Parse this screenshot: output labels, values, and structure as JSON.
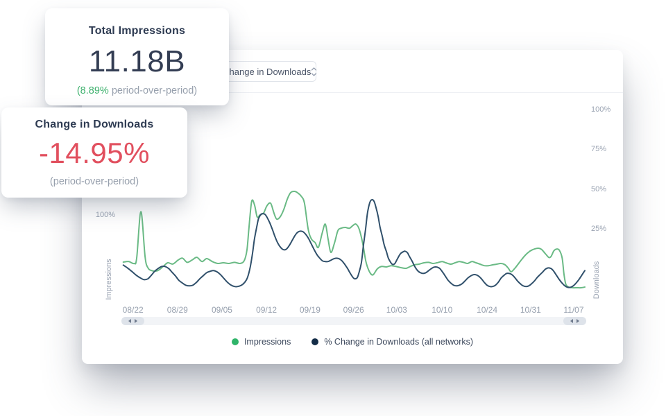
{
  "cards": {
    "impressions": {
      "title": "Total Impressions",
      "value": "11.18B",
      "delta_highlight": "(8.89%",
      "delta_rest": " period-over-period)"
    },
    "downloads": {
      "title": "Change in Downloads",
      "value": "-14.95%",
      "subtitle": "(period-over-period)"
    }
  },
  "panel": {
    "metric_select": {
      "value": "% Change in Downloads"
    }
  },
  "icons": {
    "select_chevron": "up-down-caret",
    "scroll_left": "left-triangle",
    "scroll_right": "right-triangle"
  },
  "chart_data": {
    "type": "line",
    "title": "",
    "grid": false,
    "legend_position": "bottom-center",
    "x_ticks": [
      {
        "label": "08/22",
        "pos": 0.025
      },
      {
        "label": "08/29",
        "pos": 0.121
      },
      {
        "label": "09/05",
        "pos": 0.217
      },
      {
        "label": "09/12",
        "pos": 0.313
      },
      {
        "label": "09/19",
        "pos": 0.407
      },
      {
        "label": "09/26",
        "pos": 0.501
      },
      {
        "label": "10/03",
        "pos": 0.594
      },
      {
        "label": "10/10",
        "pos": 0.692
      },
      {
        "label": "10/24",
        "pos": 0.789
      },
      {
        "label": "10/31",
        "pos": 0.883
      },
      {
        "label": "11/07",
        "pos": 0.976
      }
    ],
    "left_axis": {
      "title": "Impressions",
      "unit": "%",
      "min": 0,
      "max": 233.3,
      "ticks": [
        {
          "label": "100%",
          "value": 100
        }
      ]
    },
    "right_axis": {
      "title": "Downloads",
      "unit": "%",
      "min": -18.6,
      "max": 103.4,
      "ticks": [
        {
          "label": "100%",
          "value": 100
        },
        {
          "label": "75%",
          "value": 75
        },
        {
          "label": "50%",
          "value": 50
        },
        {
          "label": "25%",
          "value": 25
        }
      ]
    },
    "series": [
      {
        "name": "Impressions",
        "axis": "left",
        "line_color": "#6aba85",
        "dot_color": "#2fb469",
        "points": [
          [
            0.004,
            43.3
          ],
          [
            0.016,
            44
          ],
          [
            0.027,
            41.7
          ],
          [
            0.033,
            48
          ],
          [
            0.042,
            104
          ],
          [
            0.051,
            50
          ],
          [
            0.057,
            36.7
          ],
          [
            0.066,
            33
          ],
          [
            0.078,
            33
          ],
          [
            0.09,
            38
          ],
          [
            0.1,
            42.5
          ],
          [
            0.111,
            41
          ],
          [
            0.123,
            46
          ],
          [
            0.132,
            48
          ],
          [
            0.142,
            43
          ],
          [
            0.153,
            46
          ],
          [
            0.163,
            49
          ],
          [
            0.174,
            44
          ],
          [
            0.184,
            47.5
          ],
          [
            0.196,
            44
          ],
          [
            0.208,
            41.7
          ],
          [
            0.22,
            42.5
          ],
          [
            0.232,
            41.7
          ],
          [
            0.244,
            43
          ],
          [
            0.256,
            41.7
          ],
          [
            0.265,
            45
          ],
          [
            0.271,
            58
          ],
          [
            0.275,
            83
          ],
          [
            0.281,
            116
          ],
          [
            0.287,
            112.5
          ],
          [
            0.293,
            97.5
          ],
          [
            0.299,
            100
          ],
          [
            0.307,
            102.5
          ],
          [
            0.314,
            111
          ],
          [
            0.322,
            114
          ],
          [
            0.329,
            102.5
          ],
          [
            0.335,
            95
          ],
          [
            0.343,
            98
          ],
          [
            0.35,
            106
          ],
          [
            0.358,
            119
          ],
          [
            0.365,
            126.7
          ],
          [
            0.373,
            128.3
          ],
          [
            0.38,
            126.7
          ],
          [
            0.388,
            122.5
          ],
          [
            0.395,
            114
          ],
          [
            0.403,
            83
          ],
          [
            0.41,
            71
          ],
          [
            0.418,
            66.7
          ],
          [
            0.425,
            61
          ],
          [
            0.433,
            77.5
          ],
          [
            0.44,
            89
          ],
          [
            0.446,
            71
          ],
          [
            0.452,
            55
          ],
          [
            0.46,
            66.7
          ],
          [
            0.467,
            81
          ],
          [
            0.474,
            84
          ],
          [
            0.483,
            85
          ],
          [
            0.492,
            84
          ],
          [
            0.5,
            87.5
          ],
          [
            0.506,
            89
          ],
          [
            0.513,
            83
          ],
          [
            0.521,
            65
          ],
          [
            0.528,
            43
          ],
          [
            0.536,
            31
          ],
          [
            0.543,
            28
          ],
          [
            0.552,
            35
          ],
          [
            0.561,
            38
          ],
          [
            0.572,
            37.5
          ],
          [
            0.582,
            39
          ],
          [
            0.593,
            38
          ],
          [
            0.603,
            36.7
          ],
          [
            0.614,
            35.8
          ],
          [
            0.623,
            38
          ],
          [
            0.632,
            40
          ],
          [
            0.642,
            40.8
          ],
          [
            0.653,
            42.5
          ],
          [
            0.663,
            43
          ],
          [
            0.672,
            41.7
          ],
          [
            0.681,
            42.5
          ],
          [
            0.692,
            44
          ],
          [
            0.7,
            42.5
          ],
          [
            0.711,
            40.8
          ],
          [
            0.72,
            42.5
          ],
          [
            0.729,
            44
          ],
          [
            0.738,
            43
          ],
          [
            0.747,
            41.7
          ],
          [
            0.756,
            44
          ],
          [
            0.765,
            42.5
          ],
          [
            0.774,
            40.8
          ],
          [
            0.783,
            39
          ],
          [
            0.792,
            39
          ],
          [
            0.801,
            40
          ],
          [
            0.81,
            40.8
          ],
          [
            0.819,
            41.7
          ],
          [
            0.828,
            40
          ],
          [
            0.835,
            35.8
          ],
          [
            0.841,
            31.7
          ],
          [
            0.849,
            35.8
          ],
          [
            0.856,
            40.8
          ],
          [
            0.864,
            46.7
          ],
          [
            0.873,
            52.5
          ],
          [
            0.882,
            56.7
          ],
          [
            0.891,
            59
          ],
          [
            0.9,
            60
          ],
          [
            0.907,
            58.3
          ],
          [
            0.915,
            53.3
          ],
          [
            0.922,
            49
          ],
          [
            0.927,
            50
          ],
          [
            0.933,
            56.7
          ],
          [
            0.939,
            59
          ],
          [
            0.945,
            57.5
          ],
          [
            0.951,
            48.3
          ],
          [
            0.955,
            29
          ],
          [
            0.959,
            16.7
          ],
          [
            0.965,
            13.3
          ],
          [
            0.974,
            12.5
          ],
          [
            0.983,
            12.5
          ],
          [
            0.992,
            12.5
          ],
          [
            1,
            13.3
          ]
        ]
      },
      {
        "name": "% Change in Downloads (all networks)",
        "axis": "right",
        "line_color": "#30506b",
        "dot_color": "#132c47",
        "points": [
          [
            0.004,
            2.2
          ],
          [
            0.013,
            0.4
          ],
          [
            0.022,
            -1.7
          ],
          [
            0.033,
            -4.4
          ],
          [
            0.042,
            -6.1
          ],
          [
            0.049,
            -7
          ],
          [
            0.057,
            -6.5
          ],
          [
            0.064,
            -4.4
          ],
          [
            0.072,
            -1.7
          ],
          [
            0.079,
            0
          ],
          [
            0.087,
            1.3
          ],
          [
            0.094,
            1.3
          ],
          [
            0.102,
            0
          ],
          [
            0.109,
            -2.2
          ],
          [
            0.117,
            -4.8
          ],
          [
            0.124,
            -7.4
          ],
          [
            0.132,
            -9.2
          ],
          [
            0.139,
            -10.5
          ],
          [
            0.147,
            -10.9
          ],
          [
            0.154,
            -10.5
          ],
          [
            0.162,
            -8.7
          ],
          [
            0.169,
            -6.5
          ],
          [
            0.177,
            -4.4
          ],
          [
            0.184,
            -2.6
          ],
          [
            0.192,
            -1.7
          ],
          [
            0.199,
            -1.3
          ],
          [
            0.207,
            -2.2
          ],
          [
            0.214,
            -3.9
          ],
          [
            0.222,
            -6.5
          ],
          [
            0.229,
            -8.7
          ],
          [
            0.237,
            -10.5
          ],
          [
            0.244,
            -11.3
          ],
          [
            0.251,
            -11.3
          ],
          [
            0.259,
            -10.5
          ],
          [
            0.266,
            -8.7
          ],
          [
            0.272,
            -5.7
          ],
          [
            0.278,
            0.9
          ],
          [
            0.283,
            9.6
          ],
          [
            0.287,
            18.3
          ],
          [
            0.292,
            26.2
          ],
          [
            0.296,
            31.4
          ],
          [
            0.301,
            34
          ],
          [
            0.305,
            34.5
          ],
          [
            0.31,
            34
          ],
          [
            0.314,
            32.3
          ],
          [
            0.32,
            28.8
          ],
          [
            0.326,
            24.4
          ],
          [
            0.332,
            19.6
          ],
          [
            0.338,
            15.7
          ],
          [
            0.344,
            13.1
          ],
          [
            0.35,
            11.8
          ],
          [
            0.356,
            12.2
          ],
          [
            0.362,
            14.4
          ],
          [
            0.368,
            17.4
          ],
          [
            0.374,
            20.5
          ],
          [
            0.38,
            22.7
          ],
          [
            0.386,
            23.5
          ],
          [
            0.392,
            23.1
          ],
          [
            0.398,
            21.4
          ],
          [
            0.404,
            18.8
          ],
          [
            0.41,
            15.3
          ],
          [
            0.416,
            11.8
          ],
          [
            0.422,
            8.7
          ],
          [
            0.428,
            6.5
          ],
          [
            0.434,
            4.8
          ],
          [
            0.44,
            4.4
          ],
          [
            0.446,
            4.4
          ],
          [
            0.452,
            5.2
          ],
          [
            0.458,
            6.1
          ],
          [
            0.464,
            6.5
          ],
          [
            0.47,
            6.1
          ],
          [
            0.476,
            4.8
          ],
          [
            0.482,
            2.6
          ],
          [
            0.488,
            0
          ],
          [
            0.494,
            -3.1
          ],
          [
            0.5,
            -5.7
          ],
          [
            0.504,
            -6.5
          ],
          [
            0.509,
            -5.7
          ],
          [
            0.513,
            -2.2
          ],
          [
            0.518,
            3.9
          ],
          [
            0.522,
            14
          ],
          [
            0.527,
            24.9
          ],
          [
            0.531,
            34.9
          ],
          [
            0.536,
            41.4
          ],
          [
            0.54,
            43.2
          ],
          [
            0.545,
            42.3
          ],
          [
            0.549,
            38.8
          ],
          [
            0.554,
            32.7
          ],
          [
            0.558,
            26.2
          ],
          [
            0.563,
            20.1
          ],
          [
            0.567,
            14.8
          ],
          [
            0.572,
            10.5
          ],
          [
            0.576,
            6.5
          ],
          [
            0.581,
            3.9
          ],
          [
            0.585,
            2.6
          ],
          [
            0.59,
            3.1
          ],
          [
            0.594,
            5.2
          ],
          [
            0.599,
            7.9
          ],
          [
            0.603,
            9.6
          ],
          [
            0.608,
            10.5
          ],
          [
            0.612,
            10.9
          ],
          [
            0.617,
            10
          ],
          [
            0.621,
            7.9
          ],
          [
            0.627,
            4.8
          ],
          [
            0.633,
            1.3
          ],
          [
            0.639,
            -1.3
          ],
          [
            0.645,
            -2.6
          ],
          [
            0.651,
            -3.1
          ],
          [
            0.657,
            -2.6
          ],
          [
            0.663,
            -1.3
          ],
          [
            0.669,
            0
          ],
          [
            0.675,
            0.9
          ],
          [
            0.681,
            0.9
          ],
          [
            0.687,
            0
          ],
          [
            0.693,
            -2.2
          ],
          [
            0.699,
            -4.8
          ],
          [
            0.705,
            -7.4
          ],
          [
            0.711,
            -9.2
          ],
          [
            0.717,
            -10.5
          ],
          [
            0.723,
            -10.9
          ],
          [
            0.729,
            -10.5
          ],
          [
            0.735,
            -9.6
          ],
          [
            0.741,
            -7.9
          ],
          [
            0.747,
            -6.1
          ],
          [
            0.753,
            -4.8
          ],
          [
            0.759,
            -3.9
          ],
          [
            0.765,
            -3.9
          ],
          [
            0.771,
            -4.8
          ],
          [
            0.777,
            -6.5
          ],
          [
            0.783,
            -8.7
          ],
          [
            0.789,
            -10.5
          ],
          [
            0.795,
            -11.3
          ],
          [
            0.801,
            -11.3
          ],
          [
            0.807,
            -10.5
          ],
          [
            0.813,
            -8.7
          ],
          [
            0.819,
            -6.1
          ],
          [
            0.825,
            -4.4
          ],
          [
            0.831,
            -3.1
          ],
          [
            0.837,
            -3.1
          ],
          [
            0.843,
            -3.9
          ],
          [
            0.849,
            -5.7
          ],
          [
            0.855,
            -7.9
          ],
          [
            0.861,
            -9.6
          ],
          [
            0.867,
            -10.9
          ],
          [
            0.873,
            -11.3
          ],
          [
            0.879,
            -10.9
          ],
          [
            0.885,
            -9.6
          ],
          [
            0.891,
            -7.9
          ],
          [
            0.897,
            -5.7
          ],
          [
            0.903,
            -3.9
          ],
          [
            0.909,
            -2.2
          ],
          [
            0.915,
            -0.4
          ],
          [
            0.921,
            0.4
          ],
          [
            0.927,
            0
          ],
          [
            0.933,
            -1.7
          ],
          [
            0.939,
            -4.4
          ],
          [
            0.945,
            -7
          ],
          [
            0.951,
            -9.2
          ],
          [
            0.957,
            -10.9
          ],
          [
            0.963,
            -11.8
          ],
          [
            0.969,
            -11.8
          ],
          [
            0.975,
            -10.9
          ],
          [
            0.981,
            -9.2
          ],
          [
            0.987,
            -7
          ],
          [
            0.993,
            -4.4
          ],
          [
            1,
            -1.3
          ]
        ]
      }
    ],
    "legend": [
      {
        "label": "Impressions",
        "color": "#2fb469"
      },
      {
        "label": "% Change in Downloads (all networks)",
        "color": "#132c47"
      }
    ]
  }
}
